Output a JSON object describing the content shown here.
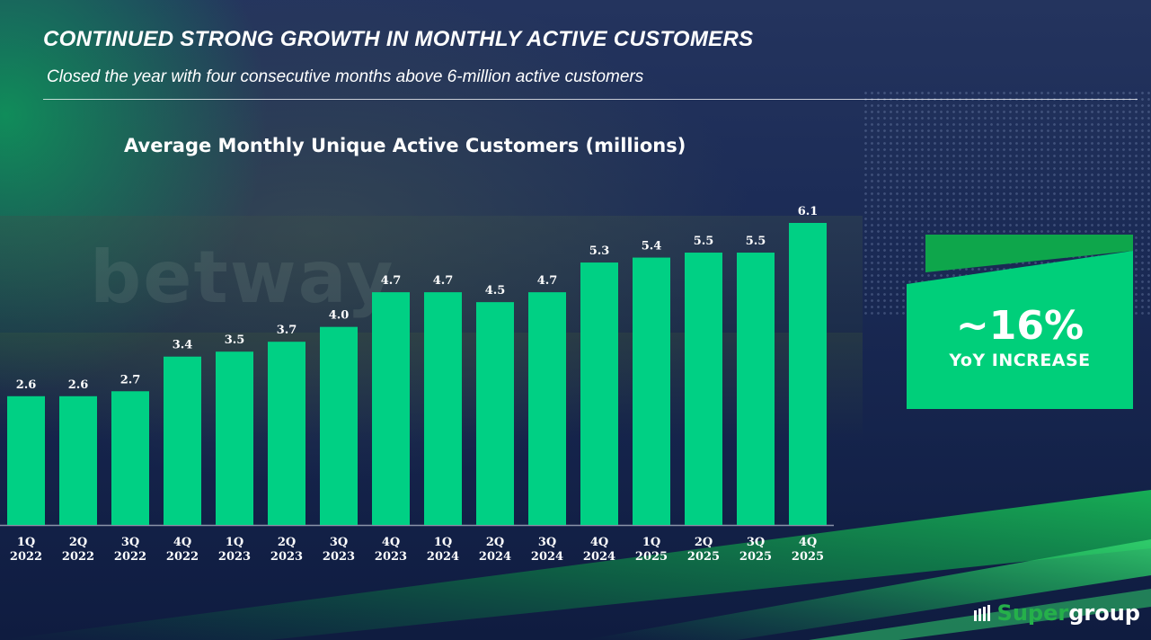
{
  "header": {
    "title": "CONTINUED STRONG GROWTH IN MONTHLY ACTIVE CUSTOMERS",
    "subtitle": "Closed the year with four consecutive months above 6-million active customers"
  },
  "highlight": {
    "value": "~16%",
    "caption": "YoY INCREASE"
  },
  "logo": {
    "part1": "Super",
    "part2": "group"
  },
  "colors": {
    "bar": "#00d084",
    "accent": "#00c86e",
    "accent_dark": "#0ea64b",
    "label": "#ffffff",
    "axis": "#8a93a8"
  },
  "background_text": "betway",
  "chart_data": {
    "type": "bar",
    "title": "Average Monthly Unique Active Customers (millions)",
    "categories": [
      [
        "1Q",
        "2022"
      ],
      [
        "2Q",
        "2022"
      ],
      [
        "3Q",
        "2022"
      ],
      [
        "4Q",
        "2022"
      ],
      [
        "1Q",
        "2023"
      ],
      [
        "2Q",
        "2023"
      ],
      [
        "3Q",
        "2023"
      ],
      [
        "4Q",
        "2023"
      ],
      [
        "1Q",
        "2024"
      ],
      [
        "2Q",
        "2024"
      ],
      [
        "3Q",
        "2024"
      ],
      [
        "4Q",
        "2024"
      ],
      [
        "1Q",
        "2025"
      ],
      [
        "2Q",
        "2025"
      ],
      [
        "3Q",
        "2025"
      ],
      [
        "4Q",
        "2025"
      ]
    ],
    "values": [
      2.6,
      2.6,
      2.7,
      3.4,
      3.5,
      3.7,
      4.0,
      4.7,
      4.7,
      4.5,
      4.7,
      5.3,
      5.4,
      5.5,
      5.5,
      6.1
    ],
    "labels": [
      "2.6",
      "2.6",
      "2.7",
      "3.4",
      "3.5",
      "3.7",
      "4.0",
      "4.7",
      "4.7",
      "4.5",
      "4.7",
      "5.3",
      "5.4",
      "5.5",
      "5.5",
      "6.1"
    ],
    "xlabel": "",
    "ylabel": "",
    "ylim": [
      0,
      6.1
    ],
    "grid": false,
    "legend": "none"
  }
}
